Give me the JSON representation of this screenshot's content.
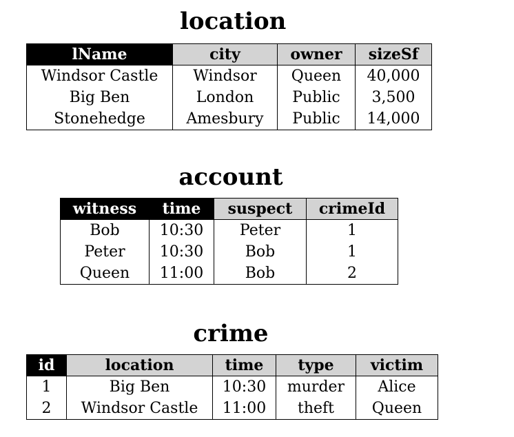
{
  "location": {
    "title": "location",
    "headers": [
      "lName",
      "city",
      "owner",
      "sizeSf"
    ],
    "rows": [
      [
        "Windsor Castle",
        "Windsor",
        "Queen",
        "40,000"
      ],
      [
        "Big Ben",
        "London",
        "Public",
        "3,500"
      ],
      [
        "Stonehedge",
        "Amesbury",
        "Public",
        "14,000"
      ]
    ]
  },
  "account": {
    "title": "account",
    "headers": [
      "witness",
      "time",
      "suspect",
      "crimeId"
    ],
    "rows": [
      [
        "Bob",
        "10:30",
        "Peter",
        "1"
      ],
      [
        "Peter",
        "10:30",
        "Bob",
        "1"
      ],
      [
        "Queen",
        "11:00",
        "Bob",
        "2"
      ]
    ]
  },
  "crime": {
    "title": "crime",
    "headers": [
      "id",
      "location",
      "time",
      "type",
      "victim"
    ],
    "rows": [
      [
        "1",
        "Big Ben",
        "10:30",
        "murder",
        "Alice"
      ],
      [
        "2",
        "Windsor Castle",
        "11:00",
        "theft",
        "Queen"
      ]
    ]
  }
}
